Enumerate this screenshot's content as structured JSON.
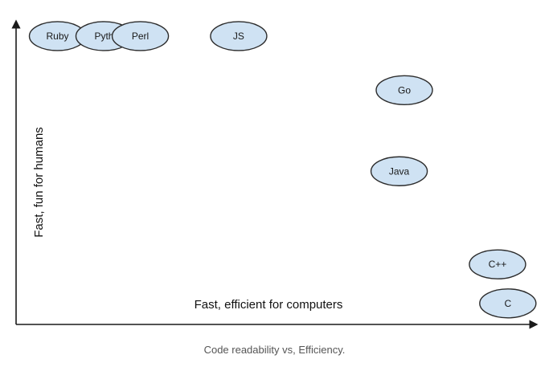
{
  "chart_data": {
    "type": "scatter",
    "xlabel": "Fast, efficient for computers",
    "ylabel": "Fast, fun for humans",
    "xlim": [
      0,
      10
    ],
    "ylim": [
      0,
      10
    ],
    "grid": false,
    "points": [
      {
        "label": "Ruby",
        "x": 0.8,
        "y": 9.6
      },
      {
        "label": "Pyth",
        "x": 1.7,
        "y": 9.6
      },
      {
        "label": "Perl",
        "x": 2.4,
        "y": 9.6
      },
      {
        "label": "JS",
        "x": 4.3,
        "y": 9.6
      },
      {
        "label": "Go",
        "x": 7.5,
        "y": 7.8
      },
      {
        "label": "Java",
        "x": 7.4,
        "y": 5.1
      },
      {
        "label": "C++",
        "x": 9.3,
        "y": 2.0
      },
      {
        "label": "C",
        "x": 9.5,
        "y": 0.7
      }
    ]
  },
  "caption": "Code readability vs, Efficiency."
}
